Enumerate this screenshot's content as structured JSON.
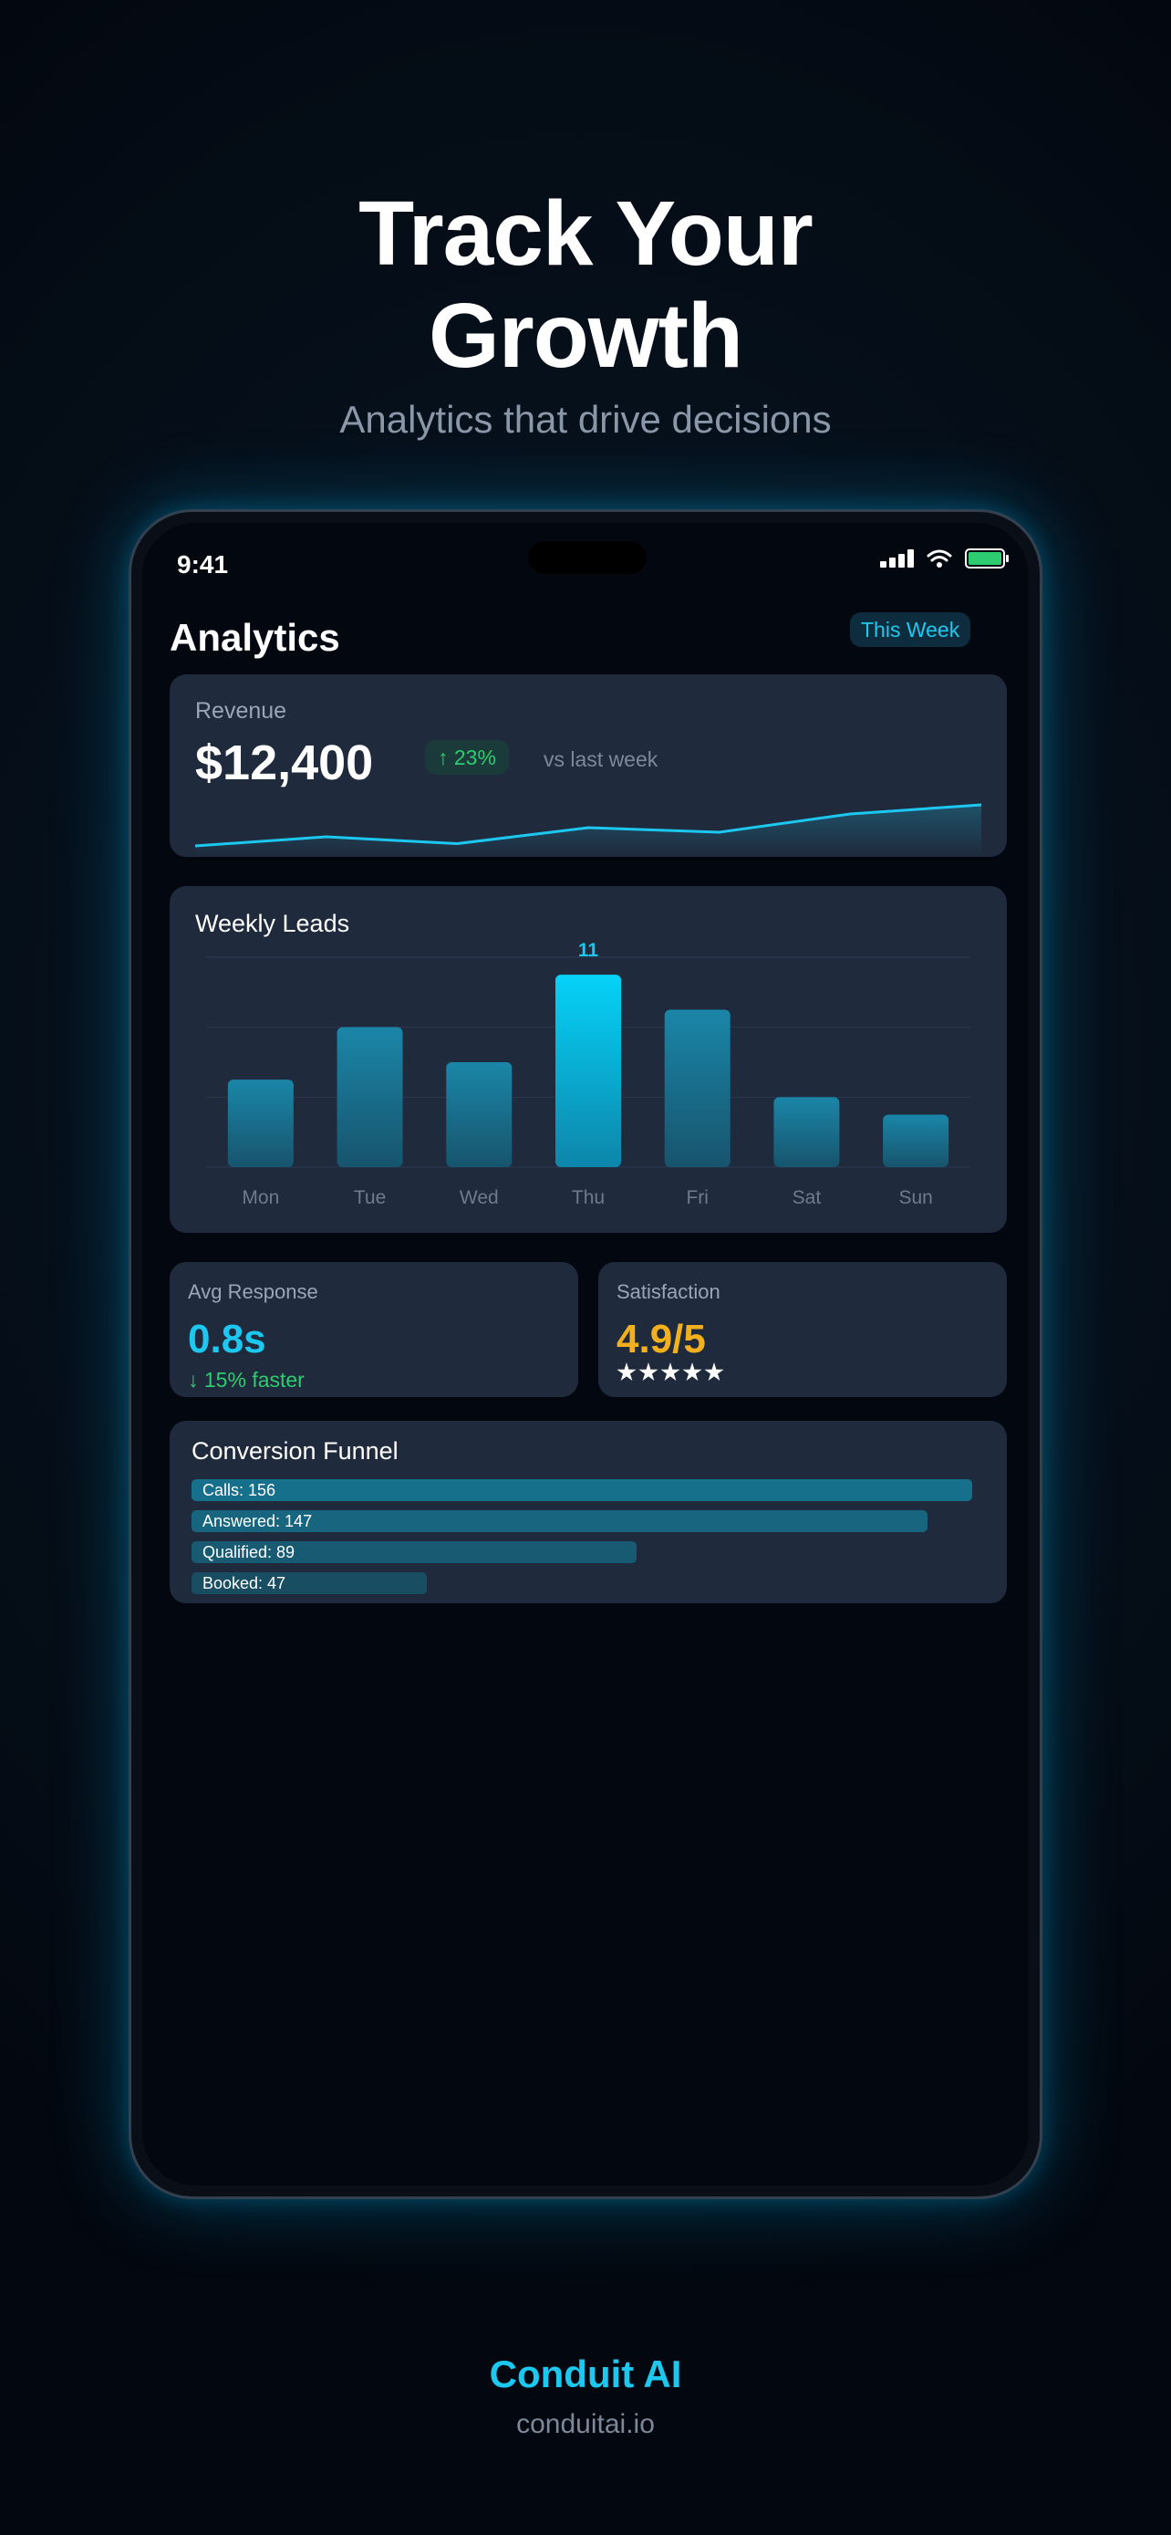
{
  "hero": {
    "title_line1": "Track Your",
    "title_line2": "Growth",
    "subtitle": "Analytics that drive decisions"
  },
  "status_bar": {
    "time": "9:41",
    "battery_color": "#2ecc71"
  },
  "header": {
    "title": "Analytics",
    "range": "This Week"
  },
  "revenue": {
    "label": "Revenue",
    "value": "$12,400",
    "change": "↑ 23%",
    "compare": "vs last week",
    "trend": [
      2,
      4,
      2.5,
      6,
      5,
      9,
      11
    ]
  },
  "weekly_leads": {
    "title": "Weekly Leads",
    "highlight_label": "11"
  },
  "avg_response": {
    "label": "Avg Response",
    "value": "0.8s",
    "change": "↓ 15% faster",
    "color": "#1cc8f0"
  },
  "satisfaction": {
    "label": "Satisfaction",
    "value": "4.9/5",
    "stars": 5,
    "color": "#f2b01e"
  },
  "funnel": {
    "title": "Conversion Funnel",
    "stages": [
      {
        "label": "Calls: 156",
        "value": 156
      },
      {
        "label": "Answered: 147",
        "value": 147
      },
      {
        "label": "Qualified: 89",
        "value": 89
      },
      {
        "label": "Booked: 47",
        "value": 47
      }
    ]
  },
  "brand": {
    "name": "Conduit AI",
    "url": "conduitai.io",
    "accent": "#1cc8f0"
  },
  "chart_data": {
    "type": "bar",
    "title": "Weekly Leads",
    "categories": [
      "Mon",
      "Tue",
      "Wed",
      "Thu",
      "Fri",
      "Sat",
      "Sun"
    ],
    "values": [
      5,
      8,
      6,
      11,
      9,
      4,
      3
    ],
    "ylim": [
      0,
      12
    ],
    "grid": true,
    "highlight_index": 3
  }
}
